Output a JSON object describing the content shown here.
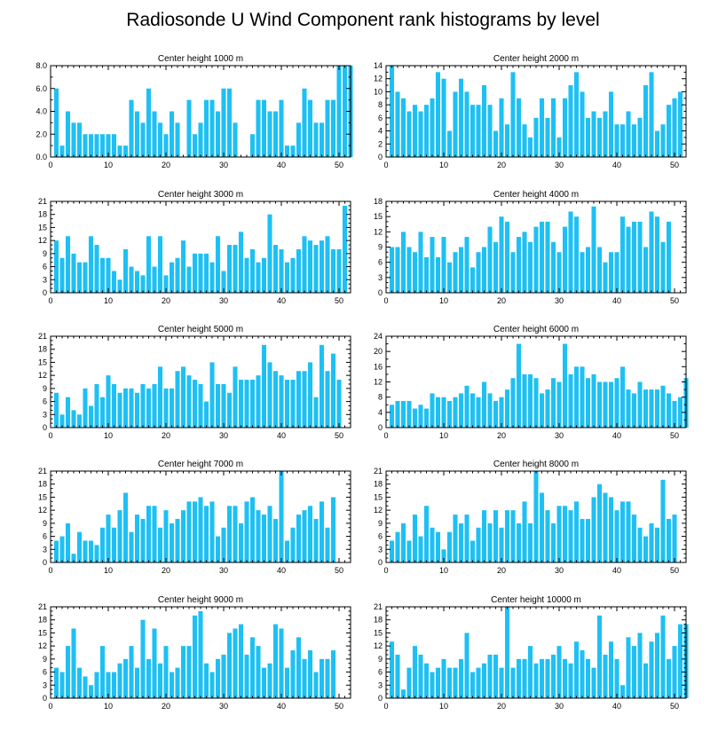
{
  "figure_title": "Radiosonde U Wind Component rank histograms by level",
  "colors": {
    "bar": "#1ec0f4",
    "frame": "#000000",
    "background": "#ffffff"
  },
  "chart_data": [
    {
      "type": "bar",
      "title": "Center height 1000 m",
      "xlim": [
        0,
        52
      ],
      "ylim": [
        0,
        8
      ],
      "xticks": [
        0,
        10,
        20,
        30,
        40,
        50
      ],
      "yticks": [
        0,
        2,
        4,
        6,
        8
      ],
      "ytick_labels": [
        "0.0",
        "2.0",
        "4.0",
        "6.0",
        "8.0"
      ],
      "values": [
        6,
        1,
        4,
        3,
        3,
        2,
        2,
        2,
        2,
        2,
        2,
        1,
        1,
        5,
        4,
        3,
        6,
        4,
        3,
        2,
        4,
        3,
        0,
        5,
        2,
        3,
        5,
        5,
        4,
        6,
        6,
        3,
        0,
        0,
        2,
        5,
        5,
        4,
        4,
        5,
        1,
        1,
        3,
        6,
        5,
        3,
        3,
        5,
        5,
        8,
        8,
        8
      ]
    },
    {
      "type": "bar",
      "title": "Center height 2000 m",
      "xlim": [
        0,
        52
      ],
      "ylim": [
        0,
        14
      ],
      "xticks": [
        0,
        10,
        20,
        30,
        40,
        50
      ],
      "yticks": [
        0,
        2,
        4,
        6,
        8,
        10,
        12,
        14
      ],
      "ytick_labels": [
        "0",
        "2",
        "4",
        "6",
        "8",
        "10",
        "12",
        "14"
      ],
      "values": [
        14,
        10,
        9,
        7,
        8,
        7,
        8,
        9,
        13,
        12,
        4,
        10,
        12,
        10,
        8,
        8,
        11,
        8,
        4,
        9,
        5,
        13,
        9,
        5,
        3,
        6,
        9,
        6,
        9,
        3,
        9,
        11,
        13,
        10,
        6,
        7,
        6,
        7,
        10,
        5,
        5,
        7,
        5,
        6,
        11,
        13,
        4,
        5,
        8,
        9,
        10,
        0
      ]
    },
    {
      "type": "bar",
      "title": "Center height 3000 m",
      "xlim": [
        0,
        52
      ],
      "ylim": [
        0,
        21
      ],
      "xticks": [
        0,
        10,
        20,
        30,
        40,
        50
      ],
      "yticks": [
        0,
        3,
        6,
        9,
        12,
        15,
        18,
        21
      ],
      "ytick_labels": [
        "0",
        "3",
        "6",
        "9",
        "12",
        "15",
        "18",
        "21"
      ],
      "values": [
        12,
        8,
        13,
        9,
        7,
        7,
        13,
        11,
        8,
        8,
        5,
        3,
        10,
        6,
        5,
        4,
        13,
        6,
        13,
        4,
        7,
        8,
        12,
        6,
        9,
        9,
        9,
        7,
        13,
        5,
        11,
        11,
        14,
        8,
        10,
        7,
        8,
        18,
        11,
        10,
        7,
        8,
        10,
        13,
        12,
        11,
        12,
        13,
        10,
        10,
        20,
        0
      ]
    },
    {
      "type": "bar",
      "title": "Center height 4000 m",
      "xlim": [
        0,
        52
      ],
      "ylim": [
        0,
        18
      ],
      "xticks": [
        0,
        10,
        20,
        30,
        40,
        50
      ],
      "yticks": [
        0,
        3,
        6,
        9,
        12,
        15,
        18
      ],
      "ytick_labels": [
        "0",
        "3",
        "6",
        "9",
        "12",
        "15",
        "18"
      ],
      "values": [
        9,
        9,
        12,
        9,
        8,
        12,
        7,
        11,
        7,
        11,
        6,
        8,
        9,
        11,
        5,
        8,
        9,
        13,
        10,
        15,
        14,
        8,
        11,
        12,
        10,
        13,
        14,
        14,
        10,
        8,
        13,
        16,
        15,
        8,
        9,
        17,
        9,
        6,
        8,
        8,
        15,
        13,
        14,
        14,
        9,
        16,
        15,
        10,
        14,
        0,
        0,
        0
      ]
    },
    {
      "type": "bar",
      "title": "Center height 5000 m",
      "xlim": [
        0,
        52
      ],
      "ylim": [
        0,
        21
      ],
      "xticks": [
        0,
        10,
        20,
        30,
        40,
        50
      ],
      "yticks": [
        0,
        3,
        6,
        9,
        12,
        15,
        18,
        21
      ],
      "ytick_labels": [
        "0",
        "3",
        "6",
        "9",
        "12",
        "15",
        "18",
        "21"
      ],
      "values": [
        8,
        3,
        7,
        4,
        3,
        9,
        5,
        10,
        7,
        12,
        10,
        8,
        9,
        9,
        8,
        10,
        9,
        10,
        14,
        9,
        9,
        13,
        14,
        12,
        11,
        10,
        6,
        15,
        10,
        10,
        8,
        14,
        11,
        11,
        11,
        12,
        19,
        15,
        13,
        12,
        11,
        11,
        13,
        13,
        15,
        7,
        19,
        13,
        17,
        11,
        0,
        0
      ]
    },
    {
      "type": "bar",
      "title": "Center height 6000 m",
      "xlim": [
        0,
        52
      ],
      "ylim": [
        0,
        24
      ],
      "xticks": [
        0,
        10,
        20,
        30,
        40,
        50
      ],
      "yticks": [
        0,
        4,
        8,
        12,
        16,
        20,
        24
      ],
      "ytick_labels": [
        "0",
        "4",
        "8",
        "12",
        "16",
        "20",
        "24"
      ],
      "values": [
        6,
        7,
        7,
        7,
        5,
        6,
        5,
        9,
        8,
        8,
        7,
        8,
        9,
        11,
        9,
        8,
        12,
        9,
        7,
        8,
        10,
        13,
        22,
        14,
        14,
        13,
        9,
        10,
        13,
        12,
        22,
        14,
        16,
        16,
        13,
        14,
        12,
        12,
        12,
        13,
        16,
        10,
        9,
        12,
        10,
        10,
        10,
        11,
        9,
        7,
        8,
        13
      ]
    },
    {
      "type": "bar",
      "title": "Center height 7000 m",
      "xlim": [
        0,
        52
      ],
      "ylim": [
        0,
        21
      ],
      "xticks": [
        0,
        10,
        20,
        30,
        40,
        50
      ],
      "yticks": [
        0,
        3,
        6,
        9,
        12,
        15,
        18,
        21
      ],
      "ytick_labels": [
        "0",
        "3",
        "6",
        "9",
        "12",
        "15",
        "18",
        "21"
      ],
      "values": [
        5,
        6,
        9,
        2,
        7,
        5,
        5,
        4,
        8,
        11,
        8,
        12,
        16,
        7,
        11,
        10,
        13,
        13,
        8,
        12,
        9,
        10,
        12,
        14,
        14,
        15,
        13,
        14,
        6,
        8,
        13,
        13,
        9,
        14,
        15,
        12,
        11,
        13,
        10,
        21,
        5,
        8,
        11,
        12,
        13,
        10,
        14,
        8,
        15,
        0,
        0,
        0
      ]
    },
    {
      "type": "bar",
      "title": "Center height 8000 m",
      "xlim": [
        0,
        52
      ],
      "ylim": [
        0,
        21
      ],
      "xticks": [
        0,
        10,
        20,
        30,
        40,
        50
      ],
      "yticks": [
        0,
        3,
        6,
        9,
        12,
        15,
        18,
        21
      ],
      "ytick_labels": [
        "0",
        "3",
        "6",
        "9",
        "12",
        "15",
        "18",
        "21"
      ],
      "values": [
        5,
        7,
        9,
        5,
        11,
        6,
        13,
        8,
        7,
        3,
        7,
        11,
        9,
        11,
        5,
        8,
        12,
        9,
        12,
        8,
        12,
        12,
        9,
        14,
        9,
        21,
        16,
        12,
        9,
        13,
        13,
        12,
        14,
        10,
        10,
        15,
        18,
        16,
        15,
        12,
        14,
        14,
        11,
        8,
        6,
        9,
        8,
        19,
        10,
        11,
        0,
        0
      ]
    },
    {
      "type": "bar",
      "title": "Center height 9000 m",
      "xlim": [
        0,
        52
      ],
      "ylim": [
        0,
        21
      ],
      "xticks": [
        0,
        10,
        20,
        30,
        40,
        50
      ],
      "yticks": [
        0,
        3,
        6,
        9,
        12,
        15,
        18,
        21
      ],
      "ytick_labels": [
        "0",
        "3",
        "6",
        "9",
        "12",
        "15",
        "18",
        "21"
      ],
      "values": [
        7,
        6,
        12,
        16,
        7,
        5,
        3,
        6,
        12,
        6,
        6,
        8,
        9,
        12,
        7,
        18,
        9,
        16,
        8,
        12,
        6,
        7,
        12,
        12,
        19,
        20,
        8,
        6,
        9,
        10,
        15,
        16,
        17,
        10,
        14,
        12,
        7,
        8,
        17,
        16,
        7,
        11,
        14,
        9,
        11,
        6,
        9,
        9,
        11,
        0,
        0,
        0
      ]
    },
    {
      "type": "bar",
      "title": "Center height 10000 m",
      "xlim": [
        0,
        52
      ],
      "ylim": [
        0,
        21
      ],
      "xticks": [
        0,
        10,
        20,
        30,
        40,
        50
      ],
      "yticks": [
        0,
        3,
        6,
        9,
        12,
        15,
        18,
        21
      ],
      "ytick_labels": [
        "0",
        "3",
        "6",
        "9",
        "12",
        "15",
        "18",
        "21"
      ],
      "values": [
        13,
        10,
        2,
        7,
        12,
        10,
        8,
        6,
        7,
        9,
        7,
        7,
        9,
        15,
        6,
        7,
        8,
        10,
        10,
        7,
        21,
        7,
        9,
        9,
        12,
        8,
        9,
        9,
        10,
        12,
        9,
        8,
        13,
        11,
        9,
        7,
        19,
        10,
        13,
        9,
        3,
        14,
        12,
        15,
        8,
        13,
        15,
        19,
        9,
        12,
        17,
        17
      ]
    }
  ]
}
